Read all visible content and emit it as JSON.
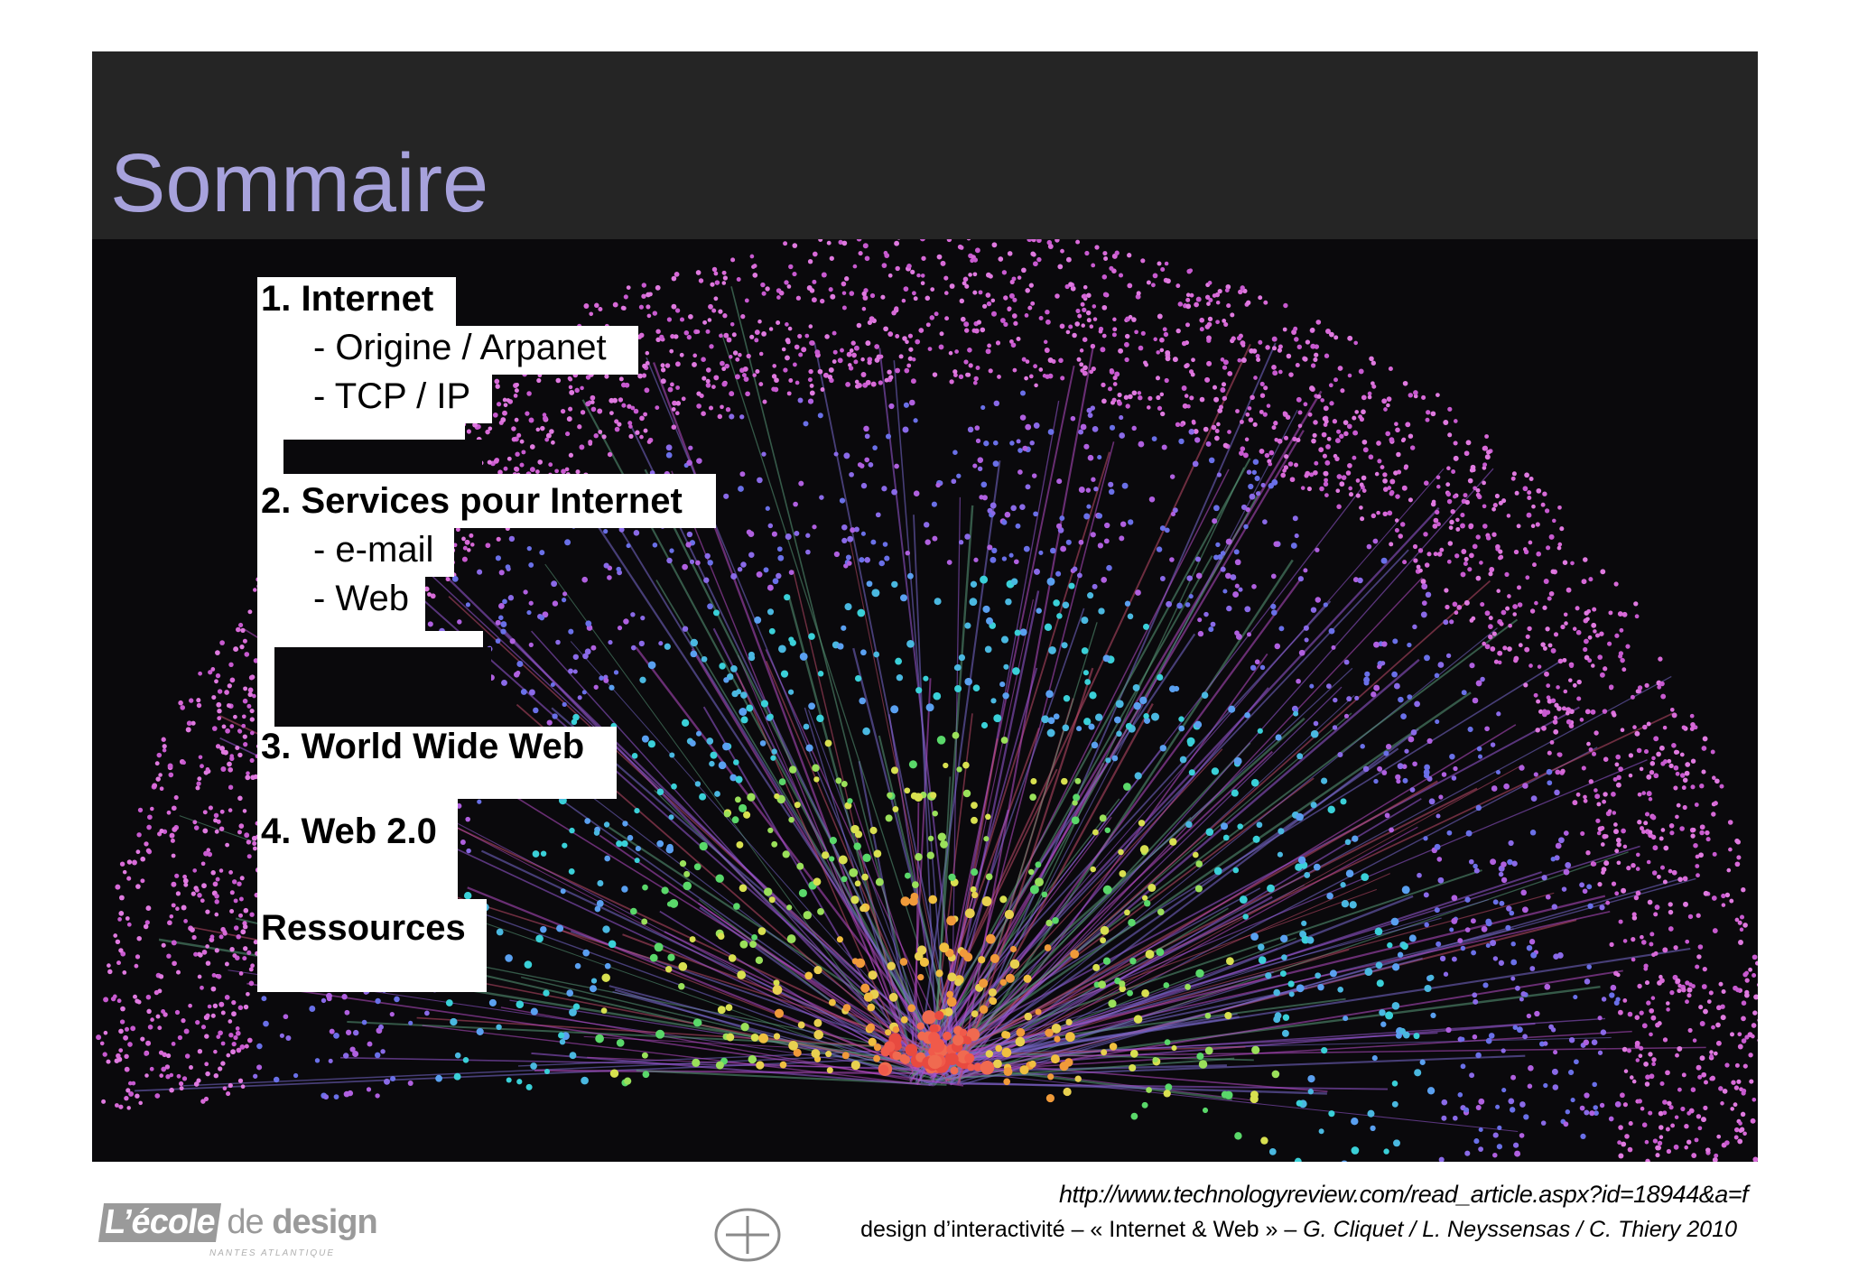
{
  "slide": {
    "title": "Sommaire",
    "toc": {
      "section1_title": "1. Internet",
      "section1_items": [
        "- Origine / Arpanet",
        "- TCP / IP"
      ],
      "section2_title": "2. Services pour Internet",
      "section2_items": [
        "- e-mail",
        "- Web"
      ],
      "section3_title": "3. World Wide Web",
      "section4_title": "4. Web 2.0",
      "resources_title": "Ressources"
    }
  },
  "footer": {
    "source_url": "http://www.technologyreview.com/read_article.aspx?id=18944&a=f",
    "credit_plain": "design  d’interactivité  – « Internet & Web » – ",
    "credit_italic": "G. Cliquet  /  L. Neyssensas / C. Thiery 2010",
    "logo_ecole": "L’école",
    "logo_de": "de",
    "logo_design": "design",
    "logo_sub": "NANTES ATLANTIQUE"
  },
  "colors": {
    "title": "#a7a2dc",
    "header_band": "#252525",
    "panel": "#0a090c",
    "network_outer": "#d86ad8",
    "network_hub": "#f05a4a"
  },
  "icons": [
    "plus-circle-icon",
    "school-logo"
  ]
}
